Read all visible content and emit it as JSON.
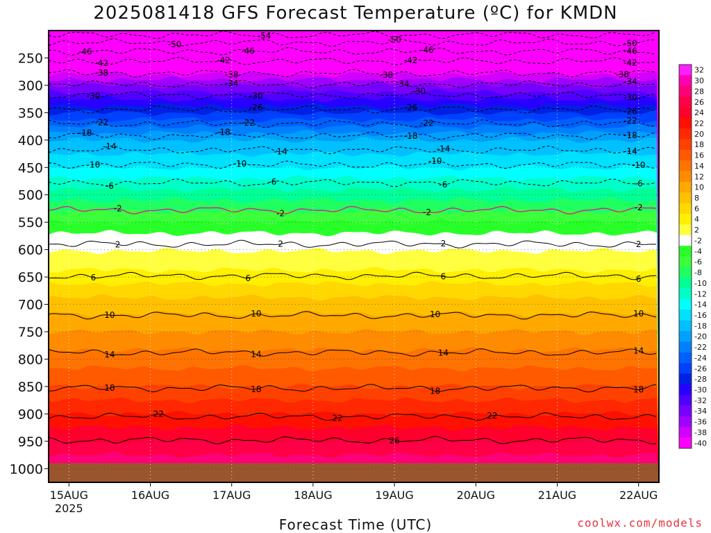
{
  "header": {
    "title": "2025081418 GFS Forecast Temperature (ºC) for KMDN"
  },
  "footer": {
    "xlabel": "Forecast Time (UTC)",
    "credit": "coolwx.com/models"
  },
  "chart_data": {
    "type": "heatmap",
    "title": "2025081418 GFS Forecast Temperature (ºC) for KMDN",
    "xlabel": "Forecast Time (UTC)",
    "ylabel": "",
    "x_ticks": [
      "15AUG",
      "16AUG",
      "17AUG",
      "18AUG",
      "19AUG",
      "20AUG",
      "21AUG",
      "22AUG"
    ],
    "x_year_label": "2025",
    "xlim_days": [
      14.75,
      22.25
    ],
    "y_ticks": [
      250,
      300,
      350,
      400,
      450,
      500,
      550,
      600,
      650,
      700,
      750,
      800,
      850,
      900,
      950,
      1000
    ],
    "ylim_hpa": [
      200,
      1025
    ],
    "surface_hpa": 990,
    "surface_color": "#9a552c",
    "colorbar": {
      "levels": [
        32,
        30,
        28,
        26,
        24,
        22,
        20,
        18,
        16,
        14,
        12,
        10,
        8,
        6,
        4,
        2,
        -2,
        -4,
        -6,
        -8,
        -10,
        -12,
        -14,
        -16,
        -18,
        -20,
        -22,
        -24,
        -26,
        -28,
        -30,
        -32,
        -34,
        -36,
        -38,
        -40
      ],
      "colors": [
        "#ff1eff",
        "#ff00b4",
        "#ff0078",
        "#ff0046",
        "#ff002d",
        "#ff1000",
        "#ff2800",
        "#ff4100",
        "#ff5a00",
        "#ff7300",
        "#ff8c00",
        "#ffa800",
        "#ffc000",
        "#ffd800",
        "#ffef00",
        "#ffff40",
        "#ffffff",
        "#28ff28",
        "#3cff3c",
        "#20ff60",
        "#00ff96",
        "#00ffc8",
        "#00ffff",
        "#00e0ff",
        "#00c0ff",
        "#00a0ff",
        "#0080ff",
        "#0060ff",
        "#0040ff",
        "#0020e6",
        "#2800ff",
        "#5000ff",
        "#7800ff",
        "#a000ff",
        "#d200ff",
        "#ff00ff"
      ]
    },
    "profile": [
      {
        "p": 200,
        "t": -56
      },
      {
        "p": 250,
        "t": -44
      },
      {
        "p": 300,
        "t": -34
      },
      {
        "p": 350,
        "t": -26
      },
      {
        "p": 400,
        "t": -18
      },
      {
        "p": 450,
        "t": -14
      },
      {
        "p": 500,
        "t": -9
      },
      {
        "p": 550,
        "t": -4
      },
      {
        "p": 600,
        "t": 1
      },
      {
        "p": 650,
        "t": 5
      },
      {
        "p": 700,
        "t": 9
      },
      {
        "p": 750,
        "t": 12
      },
      {
        "p": 800,
        "t": 15
      },
      {
        "p": 850,
        "t": 18
      },
      {
        "p": 900,
        "t": 22
      },
      {
        "p": 950,
        "t": 26
      },
      {
        "p": 1000,
        "t": 30
      }
    ],
    "contours": [
      {
        "value": -54,
        "p": 208,
        "labels": [
          17.4
        ]
      },
      {
        "value": -50,
        "p": 222,
        "labels": [
          16.3,
          19.0,
          21.9
        ]
      },
      {
        "value": -46,
        "p": 238,
        "labels": [
          15.2,
          17.2,
          19.4,
          21.9
        ]
      },
      {
        "value": -42,
        "p": 256,
        "labels": [
          15.4,
          16.9,
          19.2,
          21.9
        ]
      },
      {
        "value": -38,
        "p": 278,
        "labels": [
          15.4,
          17.0,
          18.9,
          21.8
        ]
      },
      {
        "value": -34,
        "p": 298,
        "labels": [
          17.0,
          19.1,
          21.9
        ]
      },
      {
        "value": -30,
        "p": 318,
        "labels": [
          15.3,
          17.3,
          19.3,
          21.9
        ]
      },
      {
        "value": -26,
        "p": 344,
        "labels": [
          17.3,
          19.2,
          21.9
        ]
      },
      {
        "value": -22,
        "p": 370,
        "labels": [
          15.4,
          17.2,
          19.4,
          21.9
        ]
      },
      {
        "value": -18,
        "p": 392,
        "labels": [
          15.2,
          16.9,
          19.2,
          21.9
        ]
      },
      {
        "value": -14,
        "p": 418,
        "labels": [
          15.5,
          17.6,
          19.6,
          21.9
        ]
      },
      {
        "value": -10,
        "p": 445,
        "labels": [
          15.3,
          17.1,
          19.5,
          22.0
        ]
      },
      {
        "value": -6,
        "p": 478,
        "labels": [
          15.5,
          17.5,
          19.6,
          22.0
        ]
      },
      {
        "value": -2,
        "p": 528,
        "labels": [
          15.6,
          17.6,
          19.4,
          22.0
        ]
      },
      {
        "value": 2,
        "p": 590,
        "labels": [
          15.6,
          17.6,
          19.6,
          22.0
        ]
      },
      {
        "value": 6,
        "p": 648,
        "labels": [
          15.3,
          17.2,
          19.6,
          22.0
        ]
      },
      {
        "value": 10,
        "p": 720,
        "labels": [
          15.5,
          17.3,
          19.5,
          22.0
        ]
      },
      {
        "value": 14,
        "p": 788,
        "labels": [
          15.5,
          17.3,
          19.6,
          22.0
        ]
      },
      {
        "value": 18,
        "p": 853,
        "labels": [
          15.5,
          17.3,
          19.5,
          22.0
        ]
      },
      {
        "value": 22,
        "p": 905,
        "labels": [
          16.1,
          18.3,
          20.2
        ]
      },
      {
        "value": 26,
        "p": 948,
        "labels": [
          19.0
        ]
      }
    ]
  }
}
